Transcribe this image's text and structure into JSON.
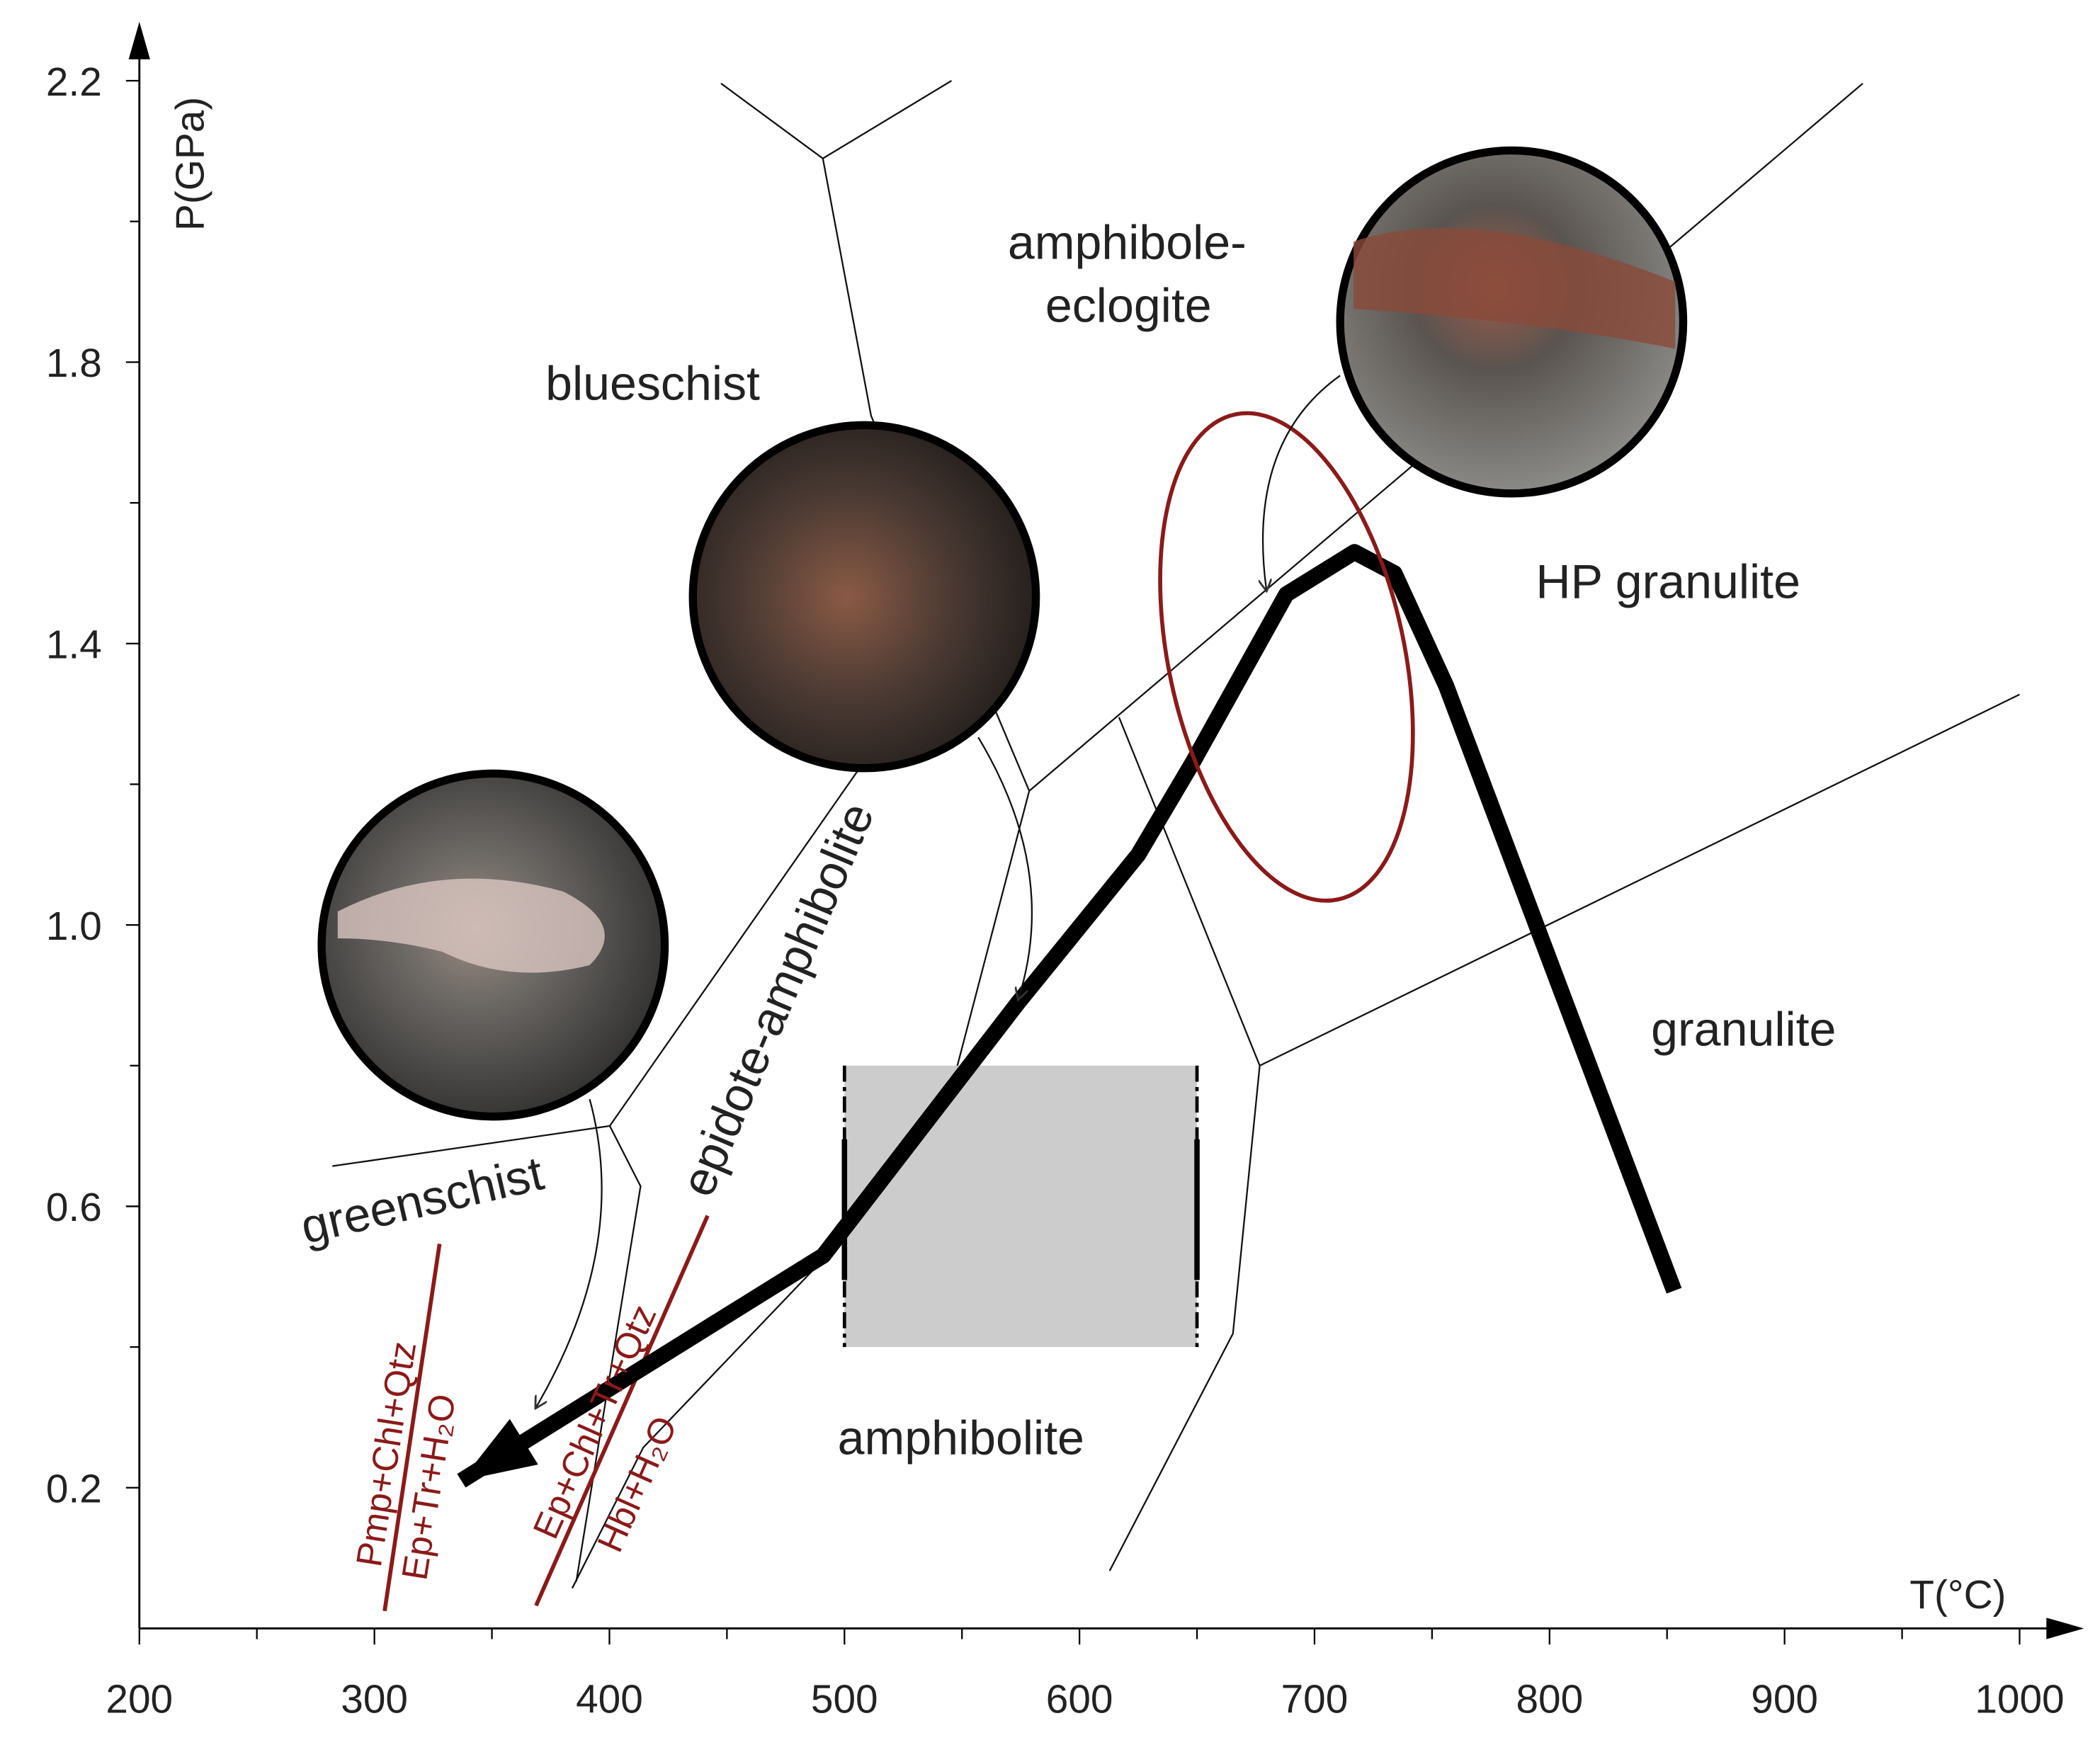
{
  "chart_data": {
    "type": "line",
    "x_label": "T(°C)",
    "y_label": "P(GPa)",
    "xlim": [
      200,
      1000
    ],
    "ylim": [
      0,
      2.2
    ],
    "xticks": [
      200,
      300,
      400,
      500,
      600,
      700,
      800,
      900,
      1000
    ],
    "xticks_minor": [
      250,
      350,
      450,
      550,
      650,
      750,
      850,
      950
    ],
    "yticks": [
      0.2,
      0.6,
      {
        "value": 1,
        "label": "1.0"
      },
      1.4,
      1.8,
      2.2
    ],
    "yticks_minor": [
      0.4,
      0.8,
      1.2,
      1.6,
      2.0
    ],
    "series": [
      {
        "color": "#000000",
        "x": [
          853,
          756,
          734,
          717,
          688,
          648,
          625,
          574,
          491,
          337
        ],
        "values": [
          0.48,
          1.34,
          1.5,
          1.53,
          1.47,
          1.23,
          1.1,
          0.89,
          0.53,
          0.21
        ]
      }
    ],
    "shaded_box": {
      "x": [
        500,
        650
      ],
      "y": [
        0.4,
        0.8
      ],
      "color": "#cccccc"
    },
    "annotations": [
      "blueschist",
      "amphibole-",
      "eclogite",
      "HP granulite",
      "granulite",
      "amphibolite",
      "greenschist",
      "epidote-amphibolite"
    ],
    "reactions": [
      {
        "reactants": "Pmp+Chl+Qtz",
        "products": "Ep+Tr+H₂O"
      },
      {
        "reactants": "Ep+Chl+Tr+Qtz",
        "products": "Hbl+H₂O"
      }
    ]
  }
}
